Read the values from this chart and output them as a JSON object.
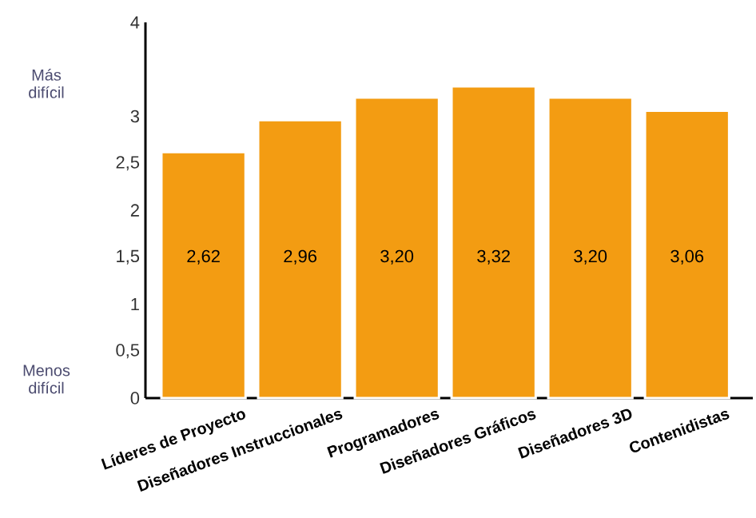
{
  "chart_data": {
    "type": "bar",
    "categories": [
      "Líderes de Proyecto",
      "Diseñadores Instruccionales",
      "Programadores",
      "Diseñadores Gráficos",
      "Diseñadores 3D",
      "Contenidistas"
    ],
    "values": [
      2.62,
      2.96,
      3.2,
      3.32,
      3.2,
      3.06
    ],
    "value_labels": [
      "2,62",
      "2,96",
      "3,20",
      "3,32",
      "3,20",
      "3,06"
    ],
    "color": "#f39c12",
    "ylim": [
      0,
      4
    ],
    "yticks": [
      0,
      {
        "value": 0.5,
        "label": "0,5"
      },
      1,
      {
        "value": 1.5,
        "label": "1,5"
      },
      2,
      {
        "value": 2.5,
        "label": "2,5"
      },
      3,
      4
    ],
    "annotations": [
      "Más difícil",
      "Menos difícil"
    ]
  }
}
